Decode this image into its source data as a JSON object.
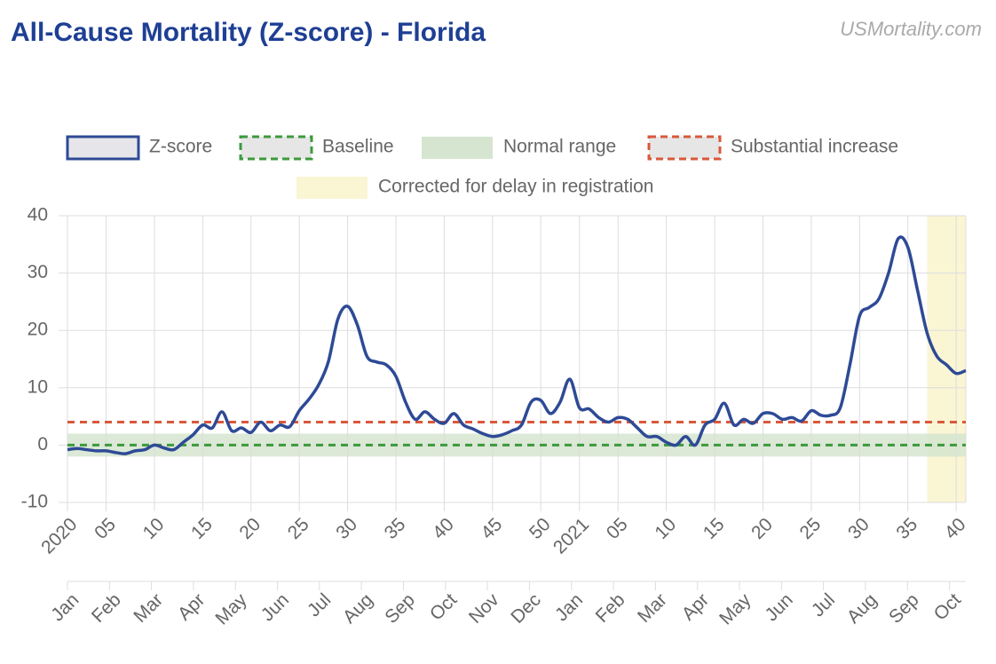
{
  "chart_data": {
    "type": "line",
    "title": "All-Cause Mortality (Z-score) - Florida",
    "source": "USMortality.com",
    "categories": [
      "2020",
      null,
      null,
      null,
      "05",
      null,
      null,
      null,
      null,
      "10",
      null,
      null,
      null,
      null,
      "15",
      null,
      null,
      null,
      null,
      "20",
      null,
      null,
      null,
      null,
      "25",
      null,
      null,
      null,
      null,
      "30",
      null,
      null,
      null,
      null,
      "35",
      null,
      null,
      null,
      null,
      "40",
      null,
      null,
      null,
      null,
      "45",
      null,
      null,
      null,
      null,
      "50",
      null,
      null,
      null,
      "2021",
      null,
      null,
      null,
      "05",
      null,
      null,
      null,
      null,
      "10",
      null,
      null,
      null,
      null,
      "15",
      null,
      null,
      null,
      null,
      "20",
      null,
      null,
      null,
      null,
      "25",
      null,
      null,
      null,
      null,
      "30",
      null,
      null,
      null,
      null,
      "35",
      null,
      null,
      null,
      null,
      "40",
      null
    ],
    "series": [
      {
        "name": "Z-score",
        "color": "#2e4a96",
        "values": [
          -0.8,
          -0.6,
          -0.8,
          -1,
          -1,
          -1.3,
          -1.5,
          -1,
          -0.8,
          0,
          -0.5,
          -0.8,
          0.5,
          1.8,
          3.5,
          3,
          5.8,
          2.5,
          3,
          2.2,
          4,
          2.5,
          3.5,
          3.2,
          6,
          8,
          10.5,
          14.5,
          22,
          24.2,
          21,
          15.5,
          14.5,
          14,
          12,
          7.5,
          4.5,
          5.8,
          4.5,
          3.8,
          5.5,
          3.5,
          2.8,
          2,
          1.5,
          1.8,
          2.5,
          3.5,
          7.5,
          7.8,
          5.5,
          7.5,
          11.5,
          6.5,
          6.3,
          4.8,
          4,
          4.8,
          4.5,
          3,
          1.5,
          1.5,
          0.5,
          0,
          1.5,
          0,
          3.5,
          4.5,
          7.3,
          3.5,
          4.5,
          3.8,
          5.5,
          5.5,
          4.5,
          4.8,
          4.2,
          6,
          5.2,
          5.2,
          6.5,
          14,
          22.5,
          24,
          25.5,
          30,
          36,
          34.5,
          27,
          19.5,
          15.5,
          14,
          12.5,
          13
        ]
      }
    ],
    "baseline": {
      "name": "Baseline",
      "color": "#3c9a3c",
      "value": 0
    },
    "normal_range": {
      "name": "Normal range",
      "color": "#d5e5cf",
      "values": [
        -2,
        2
      ]
    },
    "substantial_increase": {
      "name": "Substantial increase",
      "color": "#d9583b",
      "value": 4
    },
    "corrected": {
      "name": "Corrected for delay in registration",
      "color": "#faf5d3",
      "range": [
        89,
        93
      ]
    },
    "months": [
      "Jan",
      "Feb",
      "Mar",
      "Apr",
      "May",
      "Jun",
      "Jul",
      "Aug",
      "Sep",
      "Oct",
      "Nov",
      "Dec",
      "Jan",
      "Feb",
      "Mar",
      "Apr",
      "May",
      "Jun",
      "Jul",
      "Aug",
      "Sep",
      "Oct"
    ],
    "ylim": [
      -10,
      40
    ],
    "yticks": [
      -10,
      0,
      10,
      20,
      30,
      40
    ],
    "grid": true
  }
}
